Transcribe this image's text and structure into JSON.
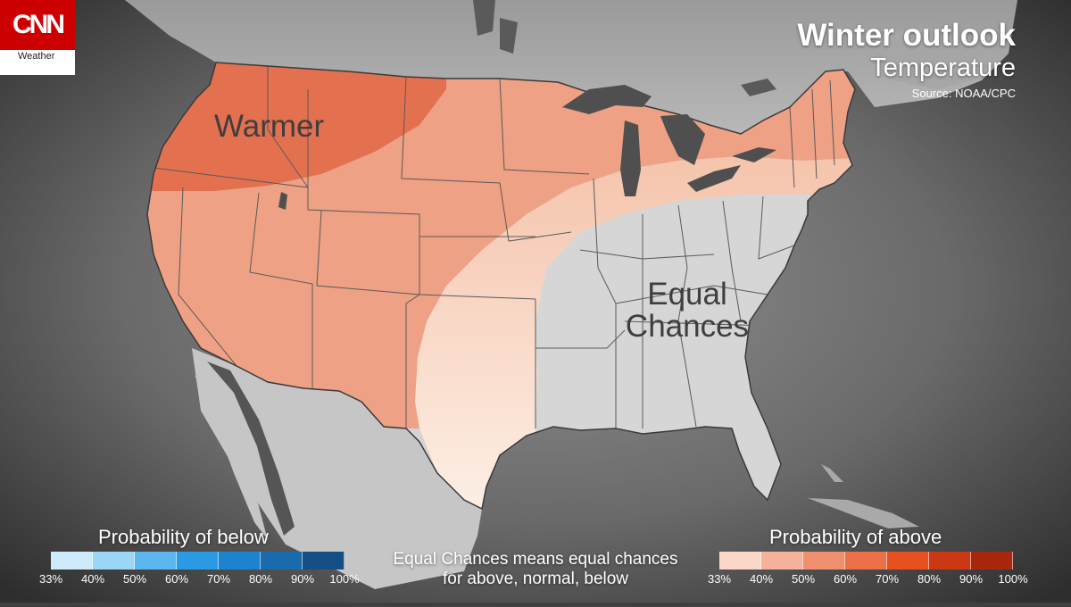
{
  "brand": {
    "name": "CNN",
    "section": "Weather",
    "color": "#cc0000"
  },
  "title": "Winter outlook",
  "subtitle": "Temperature",
  "source": "Source: NOAA/CPC",
  "regions": {
    "warmer": "Warmer",
    "equal_line1": "Equal",
    "equal_line2": "Chances"
  },
  "legend_below": {
    "title": "Probability of below",
    "ticks": [
      "33%",
      "40%",
      "50%",
      "60%",
      "70%",
      "80%",
      "90%",
      "100%"
    ],
    "colors": [
      "#cdebfb",
      "#9bd6f6",
      "#5db7ef",
      "#2b9be6",
      "#1c83d1",
      "#1a6bae",
      "#134f85"
    ]
  },
  "legend_above": {
    "title": "Probability of above",
    "ticks": [
      "33%",
      "40%",
      "50%",
      "60%",
      "70%",
      "80%",
      "90%",
      "100%"
    ],
    "colors": [
      "#fad7c6",
      "#f6b39b",
      "#f1906f",
      "#ec7047",
      "#e8501f",
      "#cc3814",
      "#a9270d"
    ]
  },
  "note": "Equal Chances means equal chances for above, normal, below",
  "colors": {
    "warmer_dark": "#e3704f",
    "warmer_mid": "#eea184",
    "warmer_light": "#f6c6ae",
    "equal": "#d6d6d6",
    "land": "#b6b6b6",
    "water": "#484848"
  }
}
